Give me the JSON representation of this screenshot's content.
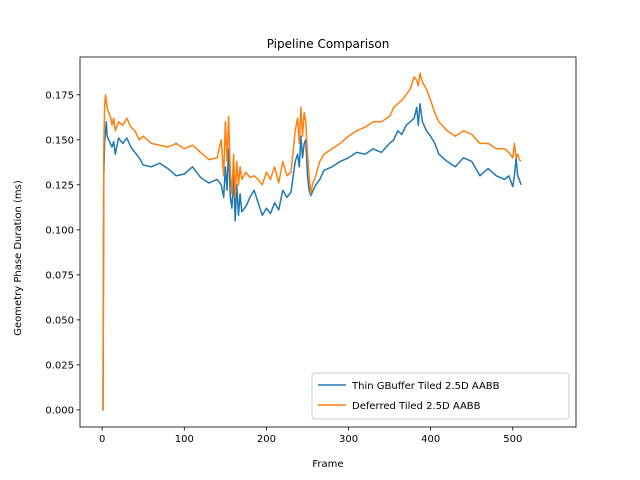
{
  "chart_data": {
    "type": "line",
    "title": "Pipeline Comparison",
    "xlabel": "Frame",
    "ylabel": "Geometry Phase Duration (ms)",
    "xlim": [
      -27,
      577
    ],
    "ylim": [
      -0.0095,
      0.196
    ],
    "xticks": [
      0,
      100,
      200,
      300,
      400,
      500
    ],
    "yticks": [
      0.0,
      0.025,
      0.05,
      0.075,
      0.1,
      0.125,
      0.15,
      0.175
    ],
    "ytick_labels": [
      "0.000",
      "0.025",
      "0.050",
      "0.075",
      "0.100",
      "0.125",
      "0.150",
      "0.175"
    ],
    "grid": false,
    "legend_position": "lower-right",
    "series": [
      {
        "name": "Thin GBuffer Tiled 2.5D AABB",
        "color": "#1f77b4",
        "x": [
          0,
          1,
          2,
          3,
          4,
          5,
          6,
          8,
          10,
          12,
          14,
          16,
          20,
          25,
          30,
          35,
          40,
          45,
          50,
          60,
          70,
          80,
          90,
          100,
          110,
          120,
          130,
          140,
          145,
          148,
          150,
          152,
          154,
          156,
          158,
          160,
          162,
          164,
          166,
          168,
          170,
          175,
          180,
          185,
          190,
          195,
          200,
          205,
          210,
          215,
          220,
          225,
          230,
          235,
          238,
          240,
          242,
          244,
          246,
          248,
          250,
          252,
          254,
          256,
          260,
          265,
          270,
          280,
          290,
          300,
          310,
          320,
          330,
          340,
          350,
          355,
          360,
          365,
          370,
          375,
          380,
          383,
          385,
          387,
          390,
          395,
          400,
          405,
          410,
          420,
          430,
          440,
          450,
          460,
          470,
          480,
          490,
          495,
          500,
          502,
          504,
          506,
          508,
          510
        ],
        "values": [
          0.0,
          0.0,
          0.13,
          0.148,
          0.155,
          0.16,
          0.152,
          0.15,
          0.148,
          0.146,
          0.149,
          0.142,
          0.151,
          0.148,
          0.151,
          0.146,
          0.143,
          0.14,
          0.136,
          0.135,
          0.137,
          0.134,
          0.13,
          0.131,
          0.135,
          0.129,
          0.126,
          0.128,
          0.125,
          0.118,
          0.135,
          0.122,
          0.145,
          0.118,
          0.112,
          0.13,
          0.105,
          0.125,
          0.108,
          0.12,
          0.11,
          0.113,
          0.118,
          0.122,
          0.115,
          0.108,
          0.112,
          0.109,
          0.115,
          0.111,
          0.122,
          0.118,
          0.121,
          0.138,
          0.142,
          0.135,
          0.152,
          0.14,
          0.148,
          0.15,
          0.13,
          0.122,
          0.119,
          0.121,
          0.125,
          0.128,
          0.133,
          0.135,
          0.138,
          0.14,
          0.143,
          0.142,
          0.145,
          0.143,
          0.148,
          0.15,
          0.155,
          0.153,
          0.158,
          0.16,
          0.162,
          0.168,
          0.158,
          0.17,
          0.16,
          0.155,
          0.152,
          0.148,
          0.142,
          0.138,
          0.135,
          0.14,
          0.138,
          0.13,
          0.134,
          0.13,
          0.128,
          0.13,
          0.124,
          0.13,
          0.14,
          0.13,
          0.128,
          0.125
        ]
      },
      {
        "name": "Deferred Tiled 2.5D AABB",
        "color": "#ff7f0e",
        "x": [
          0,
          1,
          2,
          3,
          4,
          5,
          6,
          8,
          10,
          12,
          14,
          16,
          20,
          25,
          30,
          35,
          40,
          45,
          50,
          60,
          70,
          80,
          90,
          100,
          110,
          120,
          130,
          140,
          145,
          148,
          150,
          152,
          154,
          156,
          158,
          160,
          162,
          164,
          166,
          168,
          170,
          175,
          180,
          185,
          190,
          195,
          200,
          205,
          210,
          215,
          220,
          225,
          230,
          235,
          238,
          240,
          242,
          244,
          246,
          248,
          250,
          252,
          254,
          256,
          260,
          265,
          270,
          280,
          290,
          300,
          310,
          320,
          330,
          340,
          350,
          355,
          360,
          365,
          370,
          375,
          380,
          383,
          385,
          387,
          390,
          395,
          400,
          405,
          410,
          420,
          430,
          440,
          450,
          460,
          470,
          480,
          490,
          495,
          500,
          502,
          504,
          506,
          508,
          510
        ],
        "values": [
          0.0,
          0.0,
          0.145,
          0.168,
          0.175,
          0.172,
          0.168,
          0.165,
          0.163,
          0.158,
          0.162,
          0.155,
          0.16,
          0.158,
          0.162,
          0.157,
          0.155,
          0.15,
          0.152,
          0.148,
          0.147,
          0.146,
          0.148,
          0.145,
          0.147,
          0.143,
          0.139,
          0.14,
          0.15,
          0.13,
          0.16,
          0.138,
          0.163,
          0.132,
          0.12,
          0.142,
          0.118,
          0.138,
          0.125,
          0.135,
          0.128,
          0.132,
          0.129,
          0.13,
          0.128,
          0.125,
          0.132,
          0.128,
          0.135,
          0.126,
          0.138,
          0.13,
          0.132,
          0.155,
          0.162,
          0.148,
          0.168,
          0.152,
          0.165,
          0.16,
          0.142,
          0.13,
          0.12,
          0.125,
          0.13,
          0.138,
          0.142,
          0.145,
          0.148,
          0.152,
          0.155,
          0.157,
          0.16,
          0.16,
          0.163,
          0.168,
          0.17,
          0.172,
          0.175,
          0.178,
          0.185,
          0.183,
          0.18,
          0.187,
          0.182,
          0.178,
          0.172,
          0.165,
          0.16,
          0.155,
          0.152,
          0.155,
          0.153,
          0.148,
          0.148,
          0.145,
          0.145,
          0.143,
          0.14,
          0.148,
          0.14,
          0.142,
          0.139,
          0.138
        ]
      }
    ]
  }
}
